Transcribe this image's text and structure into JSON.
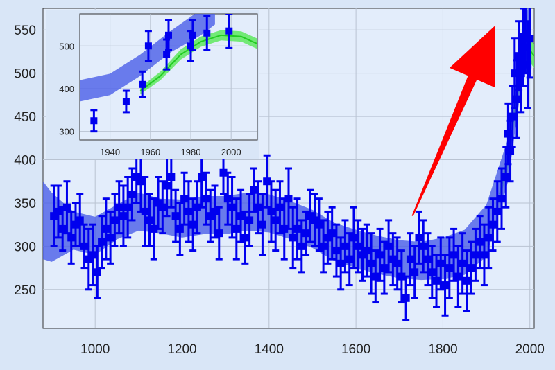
{
  "chart_data": {
    "type": "scatter",
    "title": "",
    "xlabel": "",
    "ylabel": "",
    "grid": true,
    "main": {
      "xlim": [
        880,
        2010
      ],
      "ylim": [
        205,
        575
      ],
      "xticks": [
        1000,
        1200,
        1400,
        1600,
        1800,
        2000
      ],
      "yticks": [
        250,
        300,
        350,
        400,
        450,
        500,
        550
      ],
      "points": [
        [
          905,
          335,
          35
        ],
        [
          915,
          340,
          30
        ],
        [
          925,
          320,
          25
        ],
        [
          935,
          345,
          30
        ],
        [
          945,
          310,
          30
        ],
        [
          955,
          325,
          25
        ],
        [
          965,
          330,
          30
        ],
        [
          975,
          300,
          25
        ],
        [
          985,
          285,
          35
        ],
        [
          995,
          290,
          35
        ],
        [
          1005,
          270,
          30
        ],
        [
          1015,
          305,
          30
        ],
        [
          1025,
          320,
          35
        ],
        [
          1035,
          310,
          30
        ],
        [
          1045,
          330,
          30
        ],
        [
          1055,
          345,
          30
        ],
        [
          1065,
          335,
          35
        ],
        [
          1075,
          345,
          35
        ],
        [
          1085,
          360,
          30
        ],
        [
          1095,
          380,
          30
        ],
        [
          1105,
          375,
          35
        ],
        [
          1115,
          340,
          40
        ],
        [
          1125,
          330,
          30
        ],
        [
          1135,
          320,
          35
        ],
        [
          1145,
          350,
          30
        ],
        [
          1155,
          345,
          30
        ],
        [
          1165,
          370,
          35
        ],
        [
          1175,
          380,
          35
        ],
        [
          1185,
          335,
          30
        ],
        [
          1195,
          320,
          30
        ],
        [
          1205,
          355,
          30
        ],
        [
          1215,
          340,
          35
        ],
        [
          1225,
          325,
          30
        ],
        [
          1235,
          345,
          30
        ],
        [
          1245,
          380,
          35
        ],
        [
          1255,
          355,
          30
        ],
        [
          1265,
          335,
          30
        ],
        [
          1275,
          340,
          30
        ],
        [
          1285,
          315,
          30
        ],
        [
          1295,
          385,
          25
        ],
        [
          1305,
          355,
          30
        ],
        [
          1315,
          345,
          35
        ],
        [
          1325,
          320,
          35
        ],
        [
          1335,
          335,
          30
        ],
        [
          1345,
          310,
          30
        ],
        [
          1355,
          330,
          30
        ],
        [
          1365,
          365,
          25
        ],
        [
          1375,
          345,
          30
        ],
        [
          1385,
          325,
          35
        ],
        [
          1395,
          375,
          30
        ],
        [
          1405,
          340,
          35
        ],
        [
          1415,
          330,
          35
        ],
        [
          1425,
          345,
          30
        ],
        [
          1435,
          320,
          35
        ],
        [
          1445,
          355,
          35
        ],
        [
          1455,
          310,
          35
        ],
        [
          1465,
          320,
          35
        ],
        [
          1475,
          300,
          30
        ],
        [
          1485,
          315,
          25
        ],
        [
          1495,
          335,
          30
        ],
        [
          1505,
          330,
          30
        ],
        [
          1515,
          325,
          30
        ],
        [
          1525,
          300,
          30
        ],
        [
          1535,
          310,
          30
        ],
        [
          1545,
          315,
          30
        ],
        [
          1555,
          295,
          30
        ],
        [
          1565,
          280,
          30
        ],
        [
          1575,
          300,
          30
        ],
        [
          1585,
          285,
          30
        ],
        [
          1595,
          310,
          35
        ],
        [
          1605,
          300,
          30
        ],
        [
          1615,
          290,
          30
        ],
        [
          1625,
          295,
          30
        ],
        [
          1635,
          280,
          35
        ],
        [
          1645,
          265,
          30
        ],
        [
          1655,
          290,
          30
        ],
        [
          1665,
          275,
          30
        ],
        [
          1675,
          300,
          30
        ],
        [
          1685,
          285,
          30
        ],
        [
          1695,
          280,
          30
        ],
        [
          1705,
          265,
          30
        ],
        [
          1715,
          240,
          25
        ],
        [
          1725,
          285,
          30
        ],
        [
          1735,
          270,
          30
        ],
        [
          1745,
          310,
          30
        ],
        [
          1755,
          300,
          30
        ],
        [
          1765,
          285,
          30
        ],
        [
          1775,
          270,
          30
        ],
        [
          1785,
          260,
          30
        ],
        [
          1795,
          280,
          30
        ],
        [
          1805,
          255,
          35
        ],
        [
          1815,
          275,
          35
        ],
        [
          1825,
          290,
          30
        ],
        [
          1835,
          265,
          35
        ],
        [
          1845,
          280,
          35
        ],
        [
          1855,
          260,
          35
        ],
        [
          1865,
          275,
          30
        ],
        [
          1875,
          290,
          30
        ],
        [
          1885,
          305,
          30
        ],
        [
          1895,
          290,
          35
        ],
        [
          1905,
          310,
          35
        ],
        [
          1915,
          325,
          30
        ],
        [
          1925,
          340,
          35
        ],
        [
          1935,
          355,
          35
        ],
        [
          1945,
          380,
          35
        ],
        [
          1950,
          430,
          35
        ],
        [
          1955,
          410,
          35
        ],
        [
          1960,
          450,
          35
        ],
        [
          1965,
          500,
          40
        ],
        [
          1970,
          470,
          45
        ],
        [
          1975,
          520,
          40
        ],
        [
          1980,
          500,
          45
        ],
        [
          1985,
          530,
          45
        ],
        [
          1990,
          545,
          45
        ],
        [
          1995,
          510,
          50
        ],
        [
          2000,
          540,
          45
        ]
      ],
      "fit_blue": [
        [
          880,
          330,
          45
        ],
        [
          900,
          322,
          40
        ],
        [
          950,
          318,
          22
        ],
        [
          1000,
          312,
          22
        ],
        [
          1050,
          328,
          20
        ],
        [
          1100,
          340,
          22
        ],
        [
          1150,
          335,
          20
        ],
        [
          1200,
          332,
          22
        ],
        [
          1250,
          336,
          22
        ],
        [
          1300,
          336,
          22
        ],
        [
          1350,
          340,
          22
        ],
        [
          1400,
          338,
          22
        ],
        [
          1450,
          330,
          22
        ],
        [
          1500,
          320,
          22
        ],
        [
          1550,
          305,
          22
        ],
        [
          1600,
          297,
          22
        ],
        [
          1650,
          290,
          22
        ],
        [
          1700,
          285,
          22
        ],
        [
          1750,
          283,
          22
        ],
        [
          1800,
          286,
          24
        ],
        [
          1850,
          293,
          26
        ],
        [
          1900,
          318,
          30
        ],
        [
          1950,
          400,
          25
        ],
        [
          1975,
          490,
          25
        ],
        [
          2000,
          565,
          25
        ]
      ],
      "fit_green": [
        [
          1930,
          360,
          8
        ],
        [
          1950,
          400,
          10
        ],
        [
          1965,
          455,
          12
        ],
        [
          1980,
          505,
          14
        ],
        [
          1995,
          530,
          14
        ],
        [
          2010,
          520,
          14
        ]
      ]
    },
    "inset": {
      "xlim": [
        1925,
        2013
      ],
      "ylim": [
        280,
        575
      ],
      "xticks": [
        1940,
        1960,
        1980,
        2000
      ],
      "yticks": [
        300,
        400,
        500
      ],
      "points": [
        [
          1932,
          325,
          25
        ],
        [
          1948,
          370,
          25
        ],
        [
          1956,
          410,
          30
        ],
        [
          1959,
          500,
          35
        ],
        [
          1968,
          480,
          35
        ],
        [
          1969,
          525,
          35
        ],
        [
          1980,
          500,
          35
        ],
        [
          1981,
          525,
          35
        ],
        [
          1988,
          530,
          40
        ],
        [
          1999,
          535,
          40
        ]
      ],
      "fit_blue": [
        [
          1925,
          395,
          25
        ],
        [
          1940,
          410,
          25
        ],
        [
          1955,
          455,
          25
        ],
        [
          1970,
          510,
          25
        ],
        [
          1985,
          555,
          30
        ],
        [
          1992,
          580,
          30
        ]
      ],
      "fit_green": [
        [
          1955,
          395,
          8
        ],
        [
          1965,
          430,
          10
        ],
        [
          1975,
          480,
          12
        ],
        [
          1985,
          510,
          12
        ],
        [
          1995,
          525,
          12
        ],
        [
          2005,
          522,
          12
        ],
        [
          2013,
          505,
          12
        ]
      ]
    },
    "arrow": {
      "color": "#ff0000",
      "from": [
        1730,
        335
      ],
      "to": [
        1920,
        555
      ]
    },
    "colors": {
      "background": "#d9e6f7",
      "plot_background": "#e3edfb",
      "marker": "#0000ee",
      "band_blue": "#4a5ee8",
      "band_green": "#5ee85e",
      "line_green": "#22cc22",
      "arrow": "#ff0000"
    }
  }
}
